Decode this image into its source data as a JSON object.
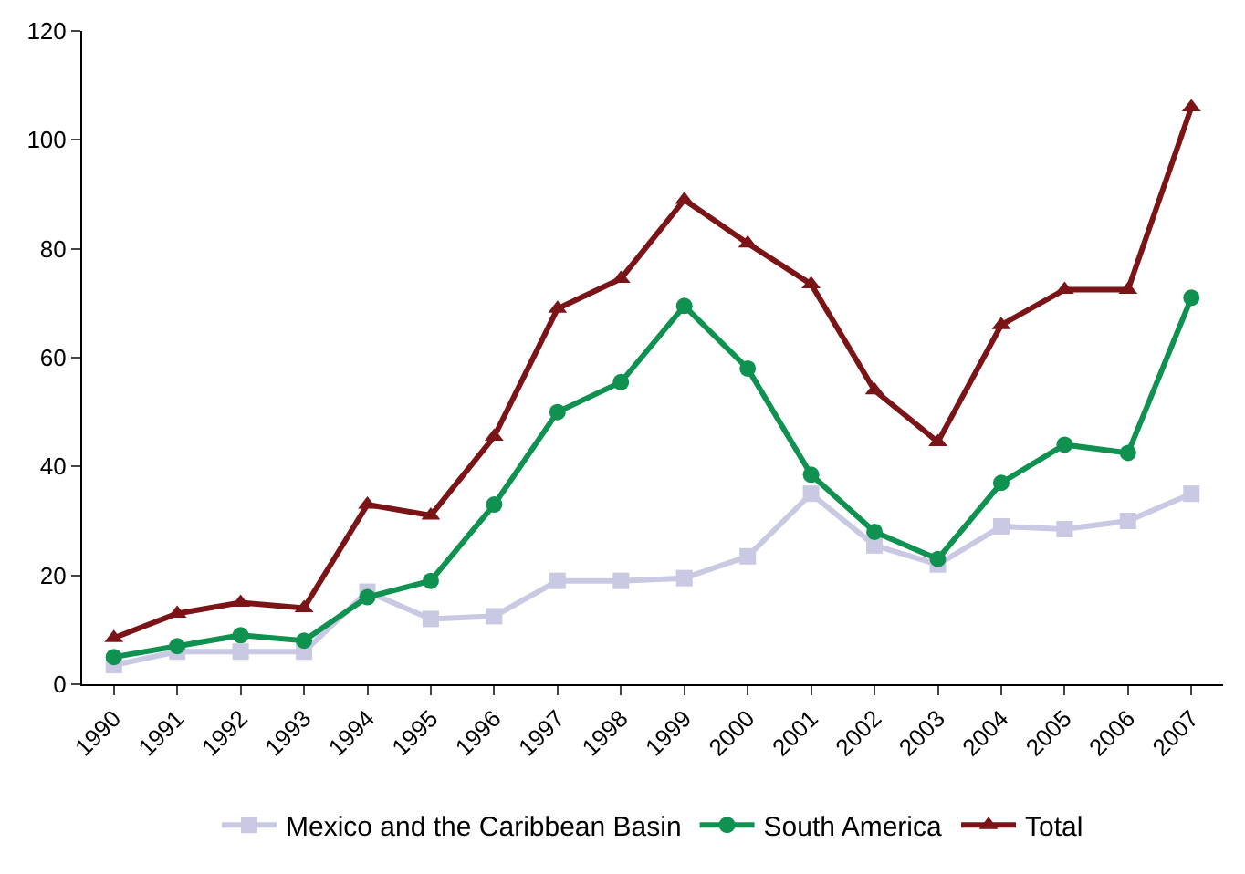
{
  "chart_data": {
    "type": "line",
    "categories": [
      "1990",
      "1991",
      "1992",
      "1993",
      "1994",
      "1995",
      "1996",
      "1997",
      "1998",
      "1999",
      "2000",
      "2001",
      "2002",
      "2003",
      "2004",
      "2005",
      "2006",
      "2007"
    ],
    "series": [
      {
        "name": "Mexico and the Caribbean Basin",
        "color": "#c9c9e3",
        "marker": "square",
        "values": [
          3.5,
          6,
          6,
          6,
          17,
          12,
          12.5,
          19,
          19,
          19.5,
          23.5,
          35,
          25.5,
          22,
          29,
          28.5,
          30,
          35
        ]
      },
      {
        "name": "South America",
        "color": "#0f9150",
        "marker": "circle",
        "values": [
          5,
          7,
          9,
          8,
          16,
          19,
          33,
          50,
          55.5,
          69.5,
          58,
          38.5,
          28,
          23,
          37,
          44,
          42.5,
          71
        ]
      },
      {
        "name": "Total",
        "color": "#7b1416",
        "marker": "triangle",
        "values": [
          8.5,
          13,
          15,
          14,
          33,
          31,
          45.5,
          69,
          74.5,
          89,
          81,
          73.5,
          54,
          44.5,
          66,
          72.5,
          72.5,
          106
        ]
      }
    ],
    "ylim": [
      0,
      120
    ],
    "yticks": [
      0,
      20,
      40,
      60,
      80,
      100,
      120
    ],
    "legend": "bottom",
    "line_style": "solid"
  }
}
